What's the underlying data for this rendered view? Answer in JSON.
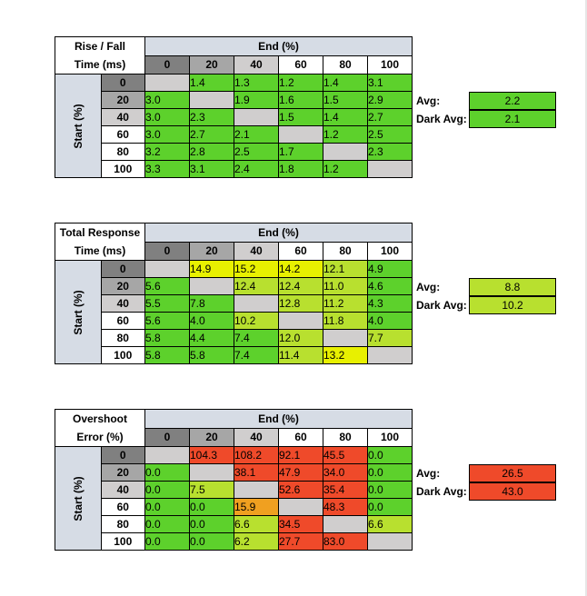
{
  "col_labels": [
    "0",
    "20",
    "40",
    "60",
    "80",
    "100"
  ],
  "row_labels": [
    "0",
    "20",
    "40",
    "60",
    "80",
    "100"
  ],
  "end_label": "End (%)",
  "start_label": "Start (%)",
  "avg_label": "Avg:",
  "dark_avg_label": "Dark Avg:",
  "colors": {
    "header_blue": "#d6dce5",
    "diag_gray": "#d0cece",
    "green": "#5dd12c",
    "lime": "#b8e02f",
    "yellow": "#e8f000",
    "orange": "#f0a020",
    "red": "#ef4a2a",
    "col_hdr_dark": "#808080",
    "col_hdr_mid": "#a6a6a6",
    "col_hdr_light": "#d0cece"
  },
  "chart_data": [
    {
      "type": "heatmap",
      "title": "Rise / Fall Time (ms)",
      "title_lines": [
        "Rise / Fall",
        "Time (ms)"
      ],
      "x": [
        "0",
        "20",
        "40",
        "60",
        "80",
        "100"
      ],
      "y": [
        "0",
        "20",
        "40",
        "60",
        "80",
        "100"
      ],
      "xlabel": "End (%)",
      "ylabel": "Start (%)",
      "values": [
        [
          null,
          1.4,
          1.3,
          1.2,
          1.4,
          3.1
        ],
        [
          3.0,
          null,
          1.9,
          1.6,
          1.5,
          2.9
        ],
        [
          3.0,
          2.3,
          null,
          1.5,
          1.4,
          2.7
        ],
        [
          3.0,
          2.7,
          2.1,
          null,
          1.2,
          2.5
        ],
        [
          3.2,
          2.8,
          2.5,
          1.7,
          null,
          2.3
        ],
        [
          3.3,
          3.1,
          2.4,
          1.8,
          1.2,
          null
        ]
      ],
      "cell_colors": [
        [
          "diag_gray",
          "green",
          "green",
          "green",
          "green",
          "green"
        ],
        [
          "green",
          "diag_gray",
          "green",
          "green",
          "green",
          "green"
        ],
        [
          "green",
          "green",
          "diag_gray",
          "green",
          "green",
          "green"
        ],
        [
          "green",
          "green",
          "green",
          "diag_gray",
          "green",
          "green"
        ],
        [
          "green",
          "green",
          "green",
          "green",
          "diag_gray",
          "green"
        ],
        [
          "green",
          "green",
          "green",
          "green",
          "green",
          "diag_gray"
        ]
      ],
      "avg": "2.2",
      "avg_color": "green",
      "dark_avg": "2.1",
      "dark_avg_color": "green"
    },
    {
      "type": "heatmap",
      "title": "Total Response Time (ms)",
      "title_lines": [
        "Total Response",
        "Time (ms)"
      ],
      "x": [
        "0",
        "20",
        "40",
        "60",
        "80",
        "100"
      ],
      "y": [
        "0",
        "20",
        "40",
        "60",
        "80",
        "100"
      ],
      "xlabel": "End (%)",
      "ylabel": "Start (%)",
      "values": [
        [
          null,
          14.9,
          15.2,
          14.2,
          12.1,
          4.9
        ],
        [
          5.6,
          null,
          12.4,
          12.4,
          11.0,
          4.6
        ],
        [
          5.5,
          7.8,
          null,
          12.8,
          11.2,
          4.3
        ],
        [
          5.6,
          4.0,
          10.2,
          null,
          11.8,
          4.0
        ],
        [
          5.8,
          4.4,
          7.4,
          12.0,
          null,
          7.7
        ],
        [
          5.8,
          5.8,
          7.4,
          11.4,
          13.2,
          null
        ]
      ],
      "cell_colors": [
        [
          "diag_gray",
          "yellow",
          "yellow",
          "yellow",
          "lime",
          "green"
        ],
        [
          "green",
          "diag_gray",
          "lime",
          "lime",
          "lime",
          "green"
        ],
        [
          "green",
          "green",
          "diag_gray",
          "lime",
          "lime",
          "green"
        ],
        [
          "green",
          "green",
          "lime",
          "diag_gray",
          "lime",
          "green"
        ],
        [
          "green",
          "green",
          "green",
          "lime",
          "diag_gray",
          "lime"
        ],
        [
          "green",
          "green",
          "green",
          "lime",
          "yellow",
          "diag_gray"
        ]
      ],
      "avg": "8.8",
      "avg_color": "lime",
      "dark_avg": "10.2",
      "dark_avg_color": "lime"
    },
    {
      "type": "heatmap",
      "title": "Overshoot Error (%)",
      "title_lines": [
        "Overshoot",
        "Error (%)"
      ],
      "x": [
        "0",
        "20",
        "40",
        "60",
        "80",
        "100"
      ],
      "y": [
        "0",
        "20",
        "40",
        "60",
        "80",
        "100"
      ],
      "xlabel": "End (%)",
      "ylabel": "Start (%)",
      "values": [
        [
          null,
          104.3,
          108.2,
          92.1,
          45.5,
          0.0
        ],
        [
          0.0,
          null,
          38.1,
          47.9,
          34.0,
          0.0
        ],
        [
          0.0,
          7.5,
          null,
          52.6,
          35.4,
          0.0
        ],
        [
          0.0,
          0.0,
          15.9,
          null,
          48.3,
          0.0
        ],
        [
          0.0,
          0.0,
          6.6,
          34.5,
          null,
          6.6
        ],
        [
          0.0,
          0.0,
          6.2,
          27.7,
          83.0,
          null
        ]
      ],
      "cell_colors": [
        [
          "diag_gray",
          "red",
          "red",
          "red",
          "red",
          "green"
        ],
        [
          "green",
          "diag_gray",
          "red",
          "red",
          "red",
          "green"
        ],
        [
          "green",
          "lime",
          "diag_gray",
          "red",
          "red",
          "green"
        ],
        [
          "green",
          "green",
          "orange",
          "diag_gray",
          "red",
          "green"
        ],
        [
          "green",
          "green",
          "lime",
          "red",
          "diag_gray",
          "lime"
        ],
        [
          "green",
          "green",
          "lime",
          "red",
          "red",
          "diag_gray"
        ]
      ],
      "avg": "26.5",
      "avg_color": "red",
      "dark_avg": "43.0",
      "dark_avg_color": "red"
    }
  ]
}
